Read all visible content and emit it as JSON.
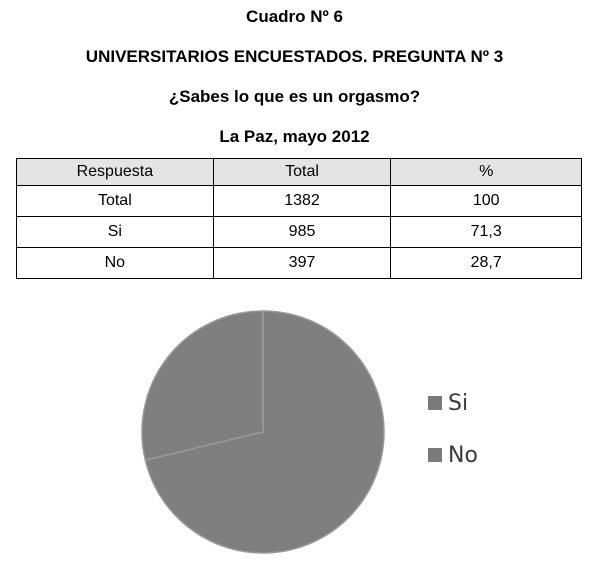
{
  "titles": {
    "line1": "Cuadro Nº 6",
    "line2": "UNIVERSITARIOS ENCUESTADOS. PREGUNTA Nº 3",
    "line3": "¿Sabes lo que es un orgasmo?",
    "line4": "La Paz, mayo 2012"
  },
  "table": {
    "headers": [
      "Respuesta",
      "Total",
      "%"
    ],
    "rows": [
      [
        "Total",
        "1382",
        "100"
      ],
      [
        "Si",
        "985",
        "71,3"
      ],
      [
        "No",
        "397",
        "28,7"
      ]
    ]
  },
  "chart_data": {
    "type": "pie",
    "categories": [
      "Si",
      "No"
    ],
    "values": [
      985,
      397
    ],
    "percentages": [
      71.3,
      28.7
    ],
    "legend_position": "right",
    "colors": {
      "Si": "#7f7f7f",
      "No": "#7f7f7f",
      "slice_border": "#9a9a9a",
      "legend_marker": "#7a7a7a"
    }
  }
}
